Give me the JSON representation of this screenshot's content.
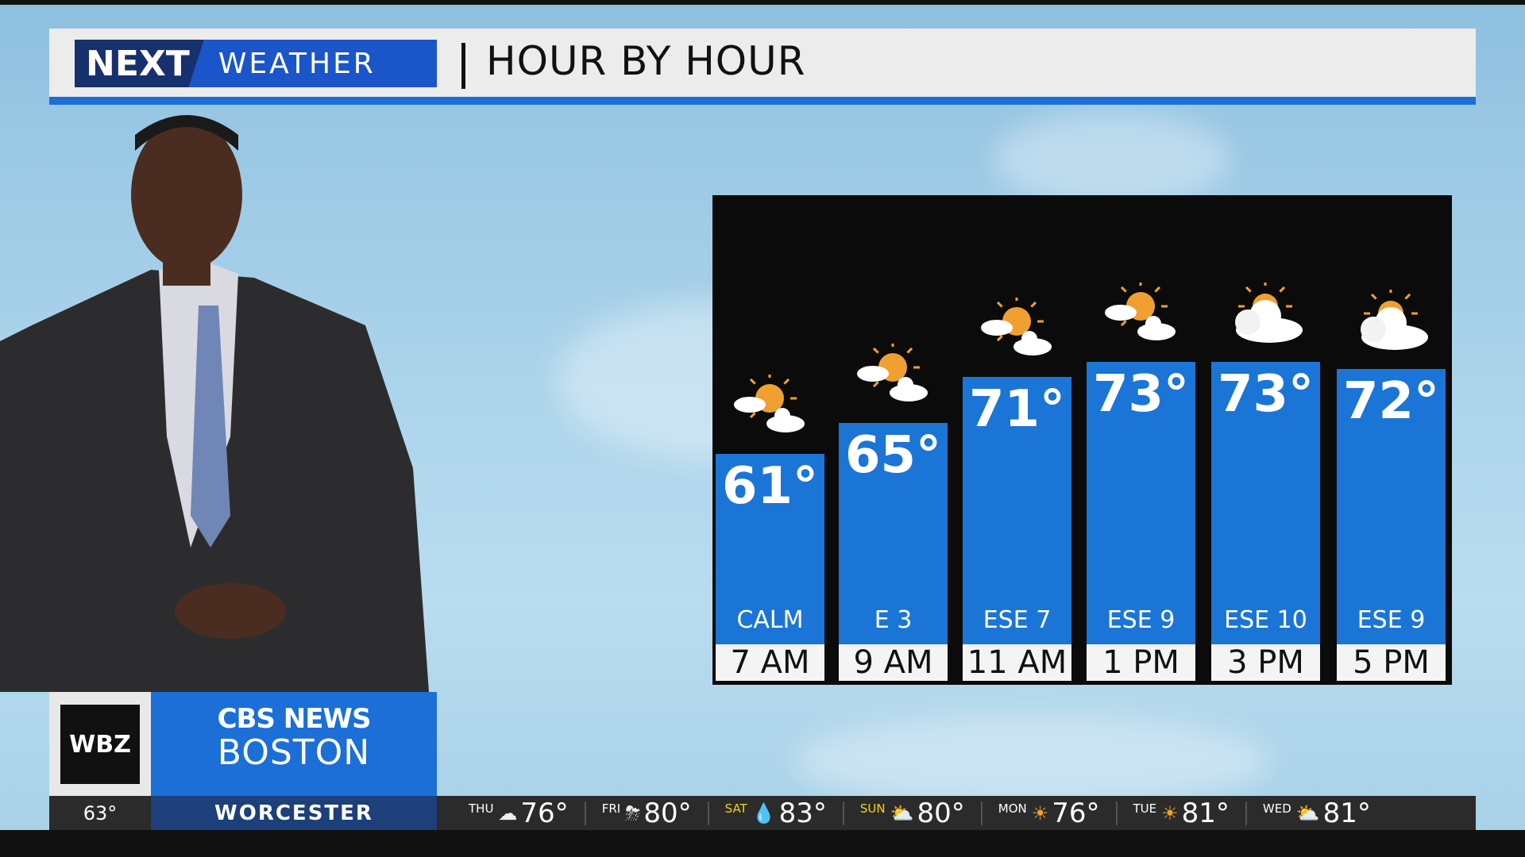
{
  "header": {
    "logo_next": "NEXT",
    "logo_weather": "WEATHER",
    "title": "HOUR BY HOUR"
  },
  "colors": {
    "bar": "#1b75d6",
    "brand_blue": "#1a55c9",
    "panel": "#0b0b0b"
  },
  "hours": [
    {
      "time": "7 AM",
      "temp": "61°",
      "temp_value": 61,
      "wind": "CALM",
      "icon": "partly-sunny-icon"
    },
    {
      "time": "9 AM",
      "temp": "65°",
      "temp_value": 65,
      "wind": "E 3",
      "icon": "partly-sunny-icon"
    },
    {
      "time": "11 AM",
      "temp": "71°",
      "temp_value": 71,
      "wind": "ESE 7",
      "icon": "partly-sunny-icon"
    },
    {
      "time": "1 PM",
      "temp": "73°",
      "temp_value": 73,
      "wind": "ESE 9",
      "icon": "partly-sunny-icon"
    },
    {
      "time": "3 PM",
      "temp": "73°",
      "temp_value": 73,
      "wind": "ESE 10",
      "icon": "mostly-cloudy-icon"
    },
    {
      "time": "5 PM",
      "temp": "72°",
      "temp_value": 72,
      "wind": "ESE 9",
      "icon": "mostly-cloudy-icon"
    }
  ],
  "station": {
    "call": "WBZ",
    "network": "CBS NEWS",
    "city": "BOSTON"
  },
  "ticker": {
    "current_temp": "63°",
    "location": "WORCESTER",
    "days": [
      {
        "day": "THU",
        "temp": "76°",
        "icon": "cloudy-icon",
        "glyph": "☁"
      },
      {
        "day": "FRI",
        "temp": "80°",
        "icon": "thunderstorm-icon",
        "glyph": "⛈"
      },
      {
        "day": "SAT",
        "temp": "83°",
        "icon": "rain-icon",
        "glyph": "💧"
      },
      {
        "day": "SUN",
        "temp": "80°",
        "icon": "partly-cloudy-icon",
        "glyph": "⛅"
      },
      {
        "day": "MON",
        "temp": "76°",
        "icon": "sun-icon",
        "glyph": "☀"
      },
      {
        "day": "TUE",
        "temp": "81°",
        "icon": "sun-icon",
        "glyph": "☀"
      },
      {
        "day": "WED",
        "temp": "81°",
        "icon": "partly-cloudy-icon",
        "glyph": "⛅"
      }
    ]
  }
}
